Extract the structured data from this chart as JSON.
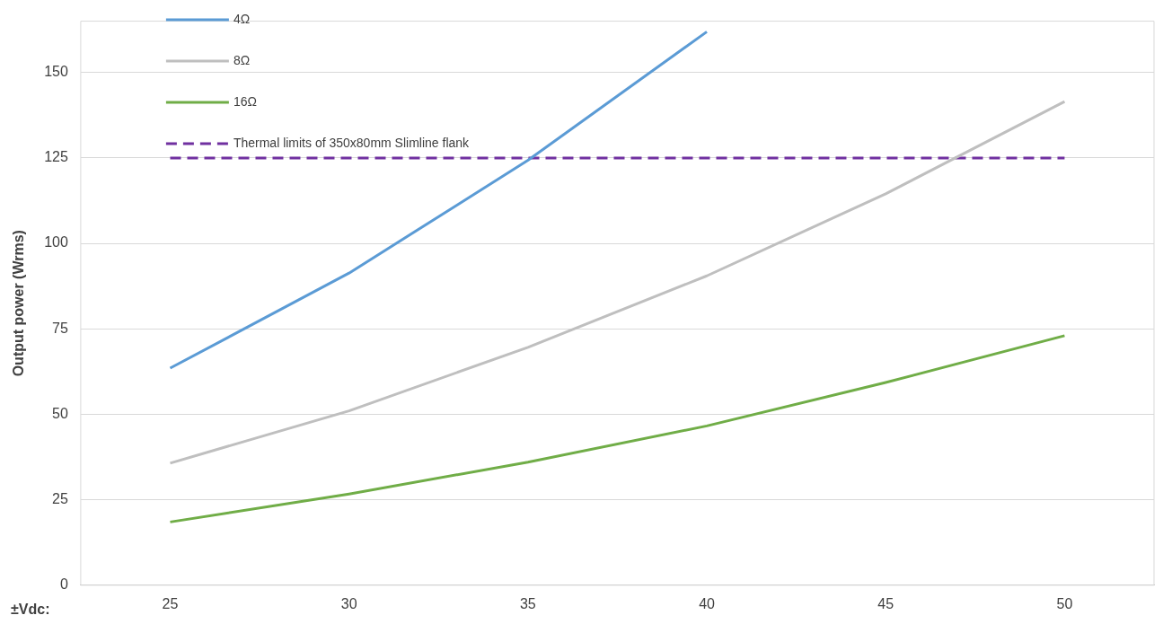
{
  "chart_data": {
    "type": "line",
    "xlabel": "±Vdc:",
    "ylabel": "Output power (Wrms)",
    "categories": [
      "25",
      "30",
      "35",
      "40",
      "45",
      "50"
    ],
    "series": [
      {
        "name": "4Ω",
        "color": "#5b9bd5",
        "values": [
          63.5,
          91.3,
          124.3,
          161.9,
          null,
          null
        ]
      },
      {
        "name": "8Ω",
        "color": "#bfbfbf",
        "values": [
          35.7,
          51,
          69.6,
          90.5,
          114.5,
          141.5
        ]
      },
      {
        "name": "16Ω",
        "color": "#70ad47",
        "values": [
          18.5,
          26.7,
          36,
          46.6,
          59.3,
          73
        ]
      },
      {
        "name": "Thermal limits of 350x80mm Slimline flank",
        "color": "#7030a0",
        "line_style": "dashed",
        "values": [
          125,
          125,
          125,
          125,
          125,
          125
        ]
      }
    ],
    "ylim": [
      0,
      165
    ],
    "yticks": [
      0,
      25,
      50,
      75,
      100,
      125,
      150
    ],
    "grid": "y",
    "legend": "top left",
    "marker": "none"
  }
}
